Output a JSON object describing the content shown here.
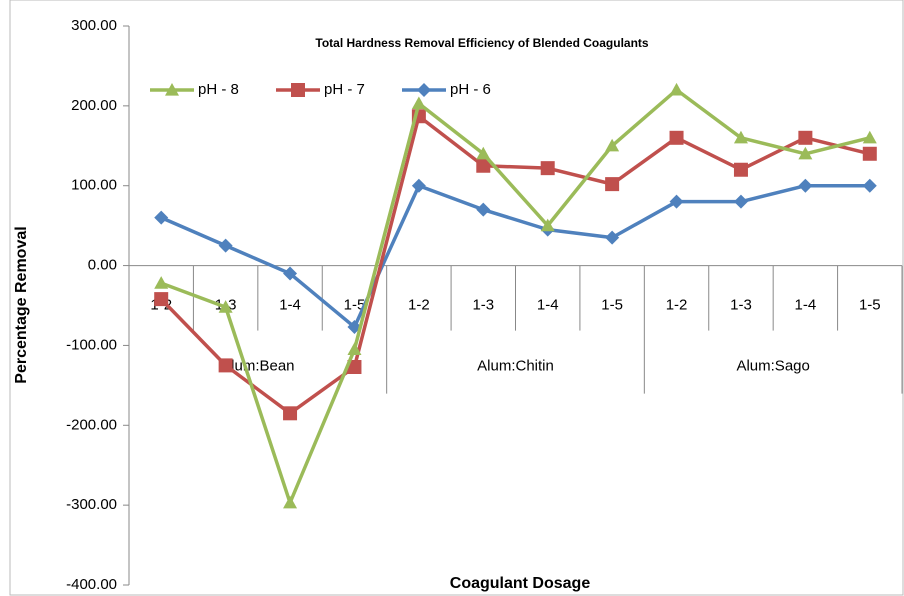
{
  "chart_data": {
    "type": "line",
    "title": "Total Hardness Removal Efficiency of Blended Coagulants",
    "x_label": "Coagulant Dosage",
    "y_label": "Percentage Removal",
    "categories": [
      "1-2",
      "1-3",
      "1-4",
      "1-5",
      "1-2",
      "1-3",
      "1-4",
      "1-5",
      "1-2",
      "1-3",
      "1-4",
      "1-5"
    ],
    "groups": [
      "Alum:Bean",
      "Alum:Chitin",
      "Alum:Sago"
    ],
    "ylim": [
      -400,
      300
    ],
    "yticks": [
      {
        "value": -400,
        "label": "-400.00"
      },
      {
        "value": -300,
        "label": "-300.00"
      },
      {
        "value": -200,
        "label": "-200.00"
      },
      {
        "value": -100,
        "label": "-100.00"
      },
      {
        "value": 0,
        "label": "0.00"
      },
      {
        "value": 100,
        "label": "100.00"
      },
      {
        "value": 200,
        "label": "200.00"
      },
      {
        "value": 300,
        "label": "300.00"
      }
    ],
    "grid": false,
    "legend": "top-left",
    "series": [
      {
        "name": "pH - 8",
        "color": "#9bbb59",
        "marker": "triangle",
        "values": [
          -22,
          -52,
          -297,
          -105,
          203,
          140,
          50,
          150,
          220,
          160,
          140,
          160
        ]
      },
      {
        "name": "pH - 7",
        "color": "#c0504d",
        "marker": "square",
        "values": [
          -42,
          -125,
          -185,
          -127,
          187,
          125,
          122,
          102,
          160,
          120,
          160,
          140
        ]
      },
      {
        "name": "pH - 6",
        "color": "#4f81bd",
        "marker": "diamond",
        "values": [
          60,
          25,
          -10,
          -77,
          100,
          70,
          45,
          35,
          80,
          80,
          100,
          100
        ]
      }
    ]
  }
}
